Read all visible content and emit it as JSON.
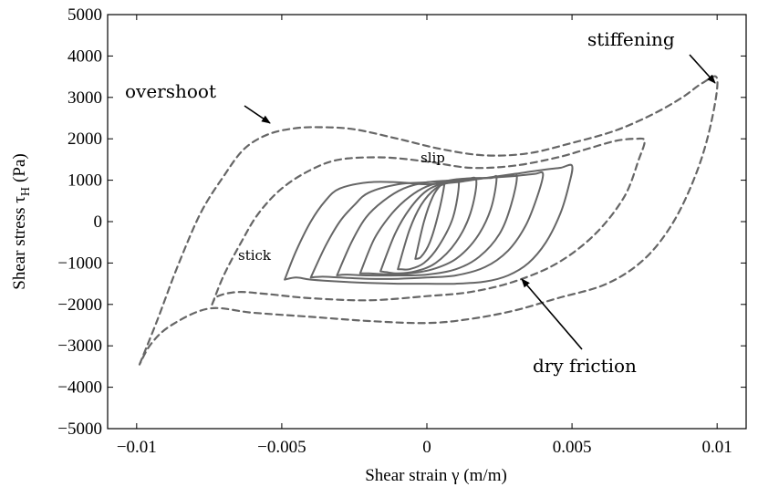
{
  "chart_data": {
    "type": "line",
    "xlabel": "Shear strain γ (m/m)",
    "ylabel_main": "Shear stress τ",
    "ylabel_sub": "H",
    "ylabel_unit": "(Pa)",
    "xlim": [
      -0.011,
      0.011
    ],
    "ylim": [
      -5000,
      5000
    ],
    "xticks": [
      -0.01,
      -0.005,
      0,
      0.005,
      0.01
    ],
    "xtick_labels": [
      "−0.01",
      "−0.005",
      "0",
      "0.005",
      "0.01"
    ],
    "yticks": [
      -5000,
      -4000,
      -3000,
      -2000,
      -1000,
      0,
      1000,
      2000,
      3000,
      4000,
      5000
    ],
    "ytick_labels": [
      "−5000",
      "−4000",
      "−3000",
      "−2000",
      "−1000",
      "0",
      "1000",
      "2000",
      "3000",
      "4000",
      "5000"
    ],
    "grid": false,
    "colors": {
      "line": "#666666",
      "axis": "#000000"
    },
    "series": [
      {
        "style": "dashed",
        "x": [
          -0.0099,
          -0.0093,
          -0.0086,
          -0.0078,
          -0.007,
          -0.0063,
          -0.0055,
          -0.0046,
          -0.0037,
          -0.0025,
          -0.001,
          0.0005,
          0.002,
          0.0035,
          0.005,
          0.0065,
          0.0078,
          0.0088,
          0.0095,
          0.01,
          0.0098,
          0.0093,
          0.0085,
          0.0075,
          0.0062,
          0.0045,
          0.003,
          0.0015,
          0.0,
          -0.002,
          -0.004,
          -0.006,
          -0.0075,
          -0.0088,
          -0.0095,
          -0.0099
        ],
        "y": [
          -3450,
          -2400,
          -1100,
          200,
          1100,
          1750,
          2100,
          2250,
          2280,
          2230,
          2000,
          1750,
          1600,
          1650,
          1900,
          2200,
          2600,
          3000,
          3350,
          3450,
          2400,
          1200,
          0,
          -900,
          -1500,
          -1850,
          -2150,
          -2350,
          -2450,
          -2400,
          -2300,
          -2200,
          -2100,
          -2500,
          -2950,
          -3450
        ]
      },
      {
        "style": "dashed",
        "x": [
          -0.0074,
          -0.007,
          -0.0064,
          -0.0058,
          -0.005,
          -0.004,
          -0.003,
          -0.0015,
          0.0,
          0.0015,
          0.003,
          0.0045,
          0.0055,
          0.0065,
          0.0072,
          0.0075,
          0.0073,
          0.0068,
          0.0058,
          0.0045,
          0.003,
          0.0015,
          0.0,
          -0.002,
          -0.004,
          -0.0055,
          -0.0065,
          -0.0072,
          -0.0074
        ],
        "y": [
          -2000,
          -1300,
          -500,
          200,
          800,
          1250,
          1500,
          1550,
          1450,
          1300,
          1350,
          1550,
          1750,
          1950,
          2000,
          1950,
          1500,
          600,
          -300,
          -1000,
          -1450,
          -1700,
          -1800,
          -1900,
          -1850,
          -1750,
          -1700,
          -1800,
          -2000
        ]
      },
      {
        "style": "solid",
        "x": [
          -0.0049,
          -0.0045,
          -0.004,
          -0.0035,
          -0.003,
          -0.002,
          -0.001,
          0.0,
          0.001,
          0.002,
          0.003,
          0.004,
          0.0046,
          0.005,
          0.0049,
          0.0046,
          0.0041,
          0.0035,
          0.0028,
          0.002,
          0.001,
          0.0,
          -0.001,
          -0.002,
          -0.003,
          -0.004,
          -0.0045,
          -0.0049
        ],
        "y": [
          -1400,
          -700,
          0,
          500,
          800,
          950,
          950,
          900,
          950,
          1050,
          1150,
          1250,
          1300,
          1350,
          900,
          200,
          -500,
          -1000,
          -1300,
          -1450,
          -1500,
          -1500,
          -1500,
          -1480,
          -1450,
          -1400,
          -1350,
          -1400
        ]
      },
      {
        "style": "solid",
        "x": [
          -0.004,
          -0.0035,
          -0.003,
          -0.0025,
          -0.002,
          -0.001,
          0.0,
          0.001,
          0.002,
          0.003,
          0.0037,
          0.004,
          0.0038,
          0.0034,
          0.0028,
          0.002,
          0.001,
          0.0,
          -0.001,
          -0.002,
          -0.003,
          -0.0036,
          -0.004
        ],
        "y": [
          -1350,
          -600,
          0,
          400,
          700,
          900,
          950,
          1000,
          1050,
          1100,
          1150,
          1150,
          600,
          -100,
          -700,
          -1100,
          -1300,
          -1350,
          -1380,
          -1380,
          -1350,
          -1330,
          -1350
        ]
      },
      {
        "style": "solid",
        "x": [
          -0.0031,
          -0.0026,
          -0.0021,
          -0.0015,
          -0.0008,
          0.0,
          0.001,
          0.002,
          0.0028,
          0.0031,
          0.0029,
          0.0025,
          0.0018,
          0.001,
          0.0,
          -0.001,
          -0.002,
          -0.0028,
          -0.0031
        ],
        "y": [
          -1300,
          -500,
          100,
          500,
          800,
          950,
          1000,
          1050,
          1100,
          1100,
          400,
          -300,
          -850,
          -1150,
          -1280,
          -1300,
          -1300,
          -1280,
          -1300
        ]
      },
      {
        "style": "solid",
        "x": [
          -0.0023,
          -0.0018,
          -0.0012,
          -0.0006,
          0.0,
          0.0008,
          0.0016,
          0.0022,
          0.0024,
          0.0022,
          0.0017,
          0.001,
          0.0002,
          -0.0006,
          -0.0014,
          -0.002,
          -0.0023
        ],
        "y": [
          -1250,
          -400,
          200,
          600,
          850,
          1000,
          1050,
          1050,
          1050,
          300,
          -400,
          -900,
          -1150,
          -1250,
          -1270,
          -1250,
          -1250
        ]
      },
      {
        "style": "solid",
        "x": [
          -0.0016,
          -0.0011,
          -0.0006,
          0.0,
          0.0007,
          0.0013,
          0.0017,
          0.0015,
          0.001,
          0.0003,
          -0.0004,
          -0.001,
          -0.0014,
          -0.0016
        ],
        "y": [
          -1200,
          -300,
          300,
          750,
          950,
          1000,
          1000,
          200,
          -500,
          -1000,
          -1200,
          -1250,
          -1220,
          -1200
        ]
      },
      {
        "style": "solid",
        "x": [
          -0.001,
          -0.0006,
          -0.0002,
          0.0003,
          0.0008,
          0.0011,
          0.0009,
          0.0004,
          -0.0001,
          -0.0006,
          -0.0009,
          -0.001
        ],
        "y": [
          -1150,
          -200,
          400,
          800,
          950,
          950,
          100,
          -600,
          -1000,
          -1150,
          -1150,
          -1150
        ]
      },
      {
        "style": "solid",
        "x": [
          -0.0004,
          -0.0001,
          0.0002,
          0.0005,
          0.0006,
          0.0004,
          0.0001,
          -0.0002,
          -0.0004
        ],
        "y": [
          -900,
          0,
          600,
          900,
          900,
          200,
          -500,
          -850,
          -900
        ]
      }
    ],
    "annotations": [
      {
        "text": "stiffening",
        "size": "large"
      },
      {
        "text": "overshoot",
        "size": "large"
      },
      {
        "text": "slip",
        "size": "small"
      },
      {
        "text": "stick",
        "size": "small"
      },
      {
        "text": "dry friction",
        "size": "large"
      }
    ]
  }
}
